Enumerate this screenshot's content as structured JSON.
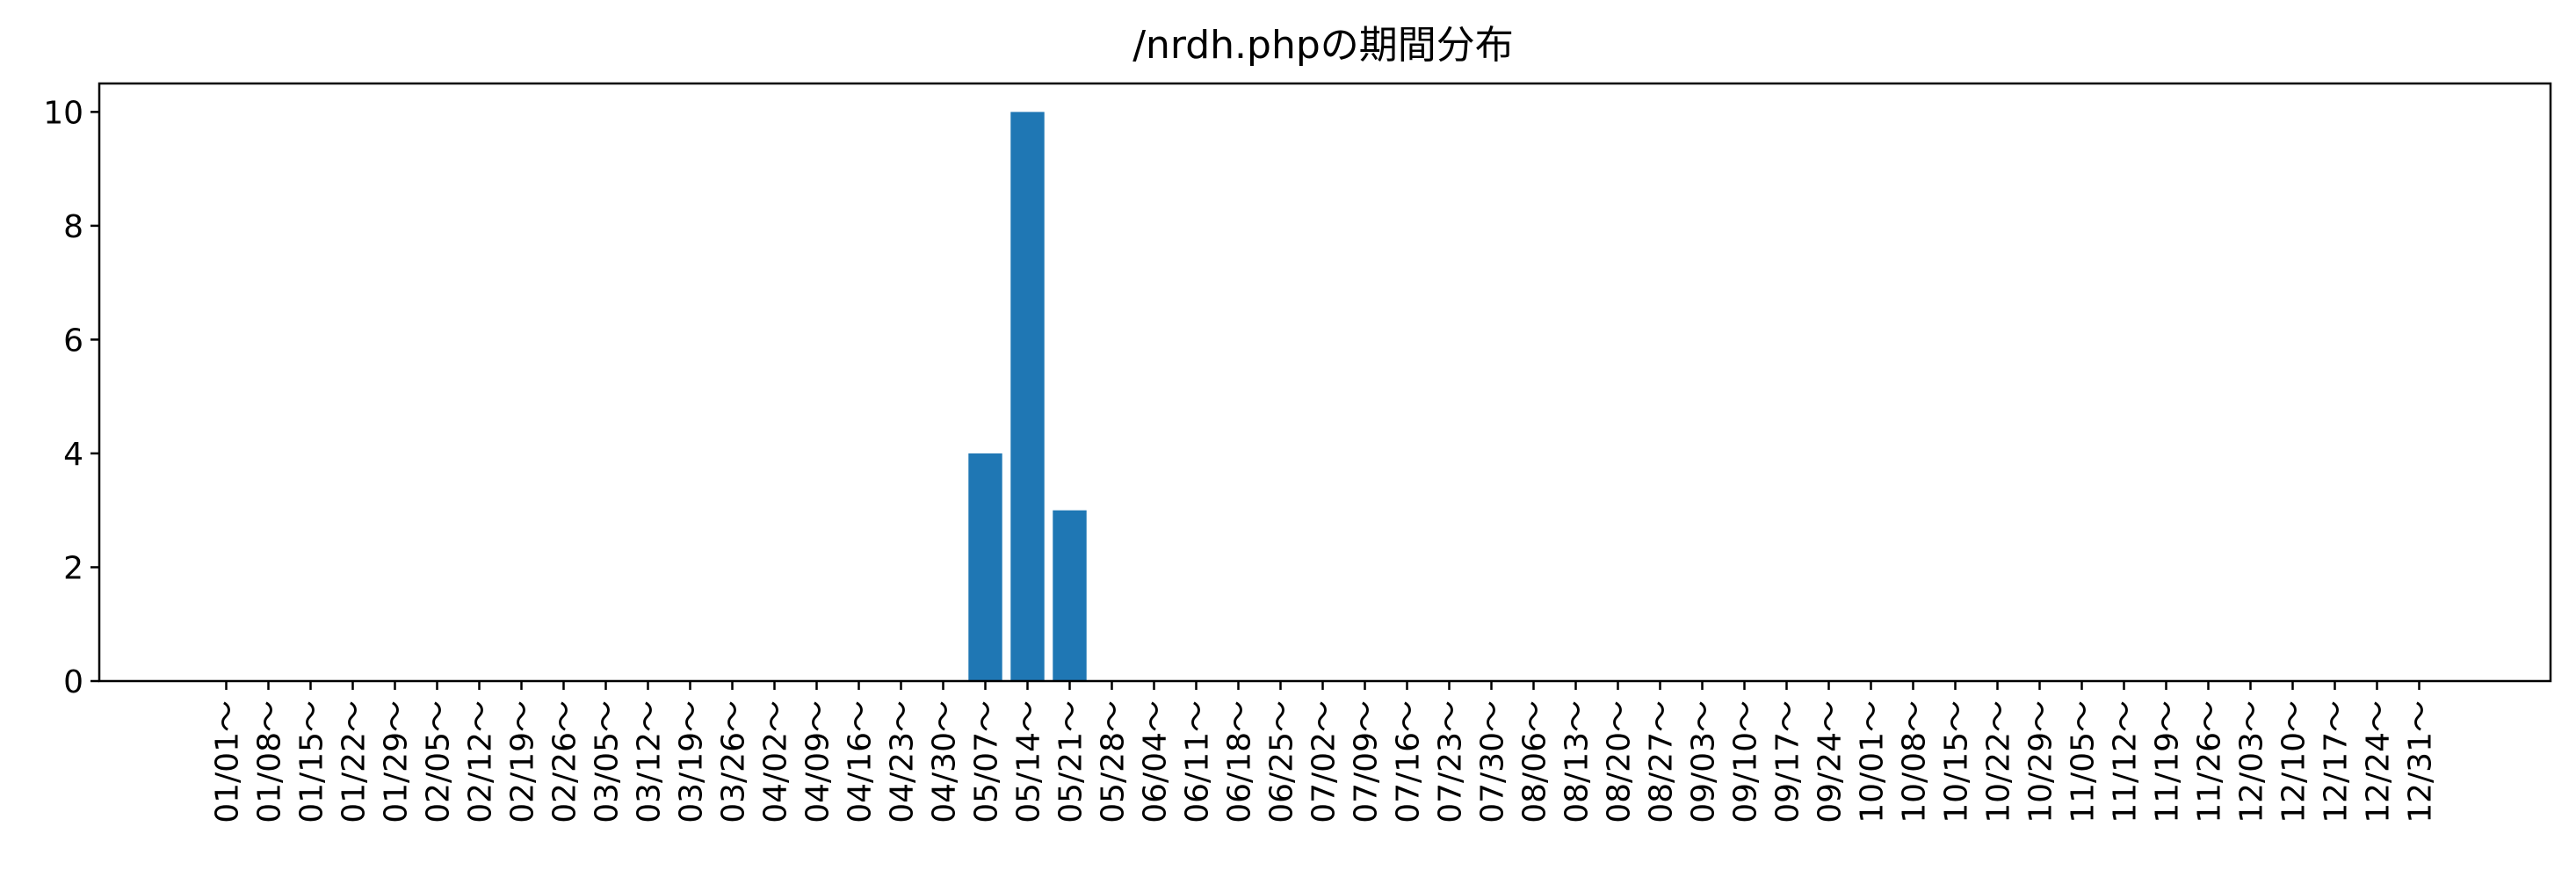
{
  "chart_data": {
    "type": "bar",
    "title": "/nrdh.phpの期間分布",
    "xlabel": "",
    "ylabel": "",
    "ylim": [
      0,
      10.5
    ],
    "yticks": [
      0,
      2,
      4,
      6,
      8,
      10
    ],
    "grid": false,
    "bar_color": "#1f77b4",
    "categories": [
      "01/01～",
      "01/08～",
      "01/15～",
      "01/22～",
      "01/29～",
      "02/05～",
      "02/12～",
      "02/19～",
      "02/26～",
      "03/05～",
      "03/12～",
      "03/19～",
      "03/26～",
      "04/02～",
      "04/09～",
      "04/16～",
      "04/23～",
      "04/30～",
      "05/07～",
      "05/14～",
      "05/21～",
      "05/28～",
      "06/04～",
      "06/11～",
      "06/18～",
      "06/25～",
      "07/02～",
      "07/09～",
      "07/16～",
      "07/23～",
      "07/30～",
      "08/06～",
      "08/13～",
      "08/20～",
      "08/27～",
      "09/03～",
      "09/10～",
      "09/17～",
      "09/24～",
      "10/01～",
      "10/08～",
      "10/15～",
      "10/22～",
      "10/29～",
      "11/05～",
      "11/12～",
      "11/19～",
      "11/26～",
      "12/03～",
      "12/10～",
      "12/17～",
      "12/24～",
      "12/31～"
    ],
    "values": [
      0,
      0,
      0,
      0,
      0,
      0,
      0,
      0,
      0,
      0,
      0,
      0,
      0,
      0,
      0,
      0,
      0,
      0,
      4,
      10,
      3,
      0,
      0,
      0,
      0,
      0,
      0,
      0,
      0,
      0,
      0,
      0,
      0,
      0,
      0,
      0,
      0,
      0,
      0,
      0,
      0,
      0,
      0,
      0,
      0,
      0,
      0,
      0,
      0,
      0,
      0,
      0,
      0
    ]
  }
}
